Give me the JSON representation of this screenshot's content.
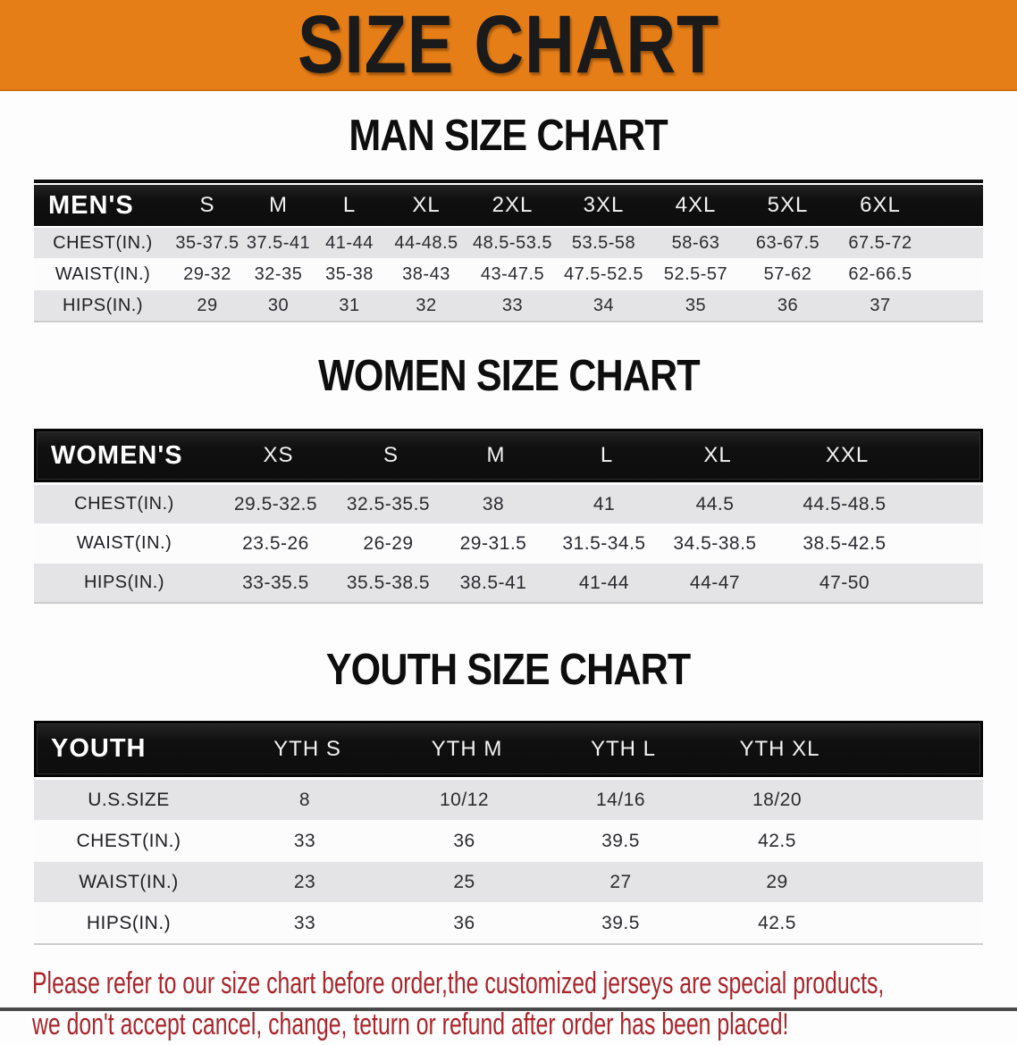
{
  "banner": {
    "title": "SIZE CHART"
  },
  "sections": [
    {
      "heading": "MAN SIZE CHART",
      "table": {
        "header_label": "MEN'S",
        "columns": [
          "S",
          "M",
          "L",
          "XL",
          "2XL",
          "3XL",
          "4XL",
          "5XL",
          "6XL"
        ],
        "rows": [
          {
            "label": "CHEST(IN.)",
            "values": [
              "35-37.5",
              "37.5-41",
              "41-44",
              "44-48.5",
              "48.5-53.5",
              "53.5-58",
              "58-63",
              "63-67.5",
              "67.5-72"
            ]
          },
          {
            "label": "WAIST(IN.)",
            "values": [
              "29-32",
              "32-35",
              "35-38",
              "38-43",
              "43-47.5",
              "47.5-52.5",
              "52.5-57",
              "57-62",
              "62-66.5"
            ]
          },
          {
            "label": "HIPS(IN.)",
            "values": [
              "29",
              "30",
              "31",
              "32",
              "33",
              "34",
              "35",
              "36",
              "37"
            ]
          }
        ]
      }
    },
    {
      "heading": "WOMEN SIZE CHART",
      "table": {
        "header_label": "WOMEN'S",
        "columns": [
          "XS",
          "S",
          "M",
          "L",
          "XL",
          "XXL"
        ],
        "rows": [
          {
            "label": "CHEST(IN.)",
            "values": [
              "29.5-32.5",
              "32.5-35.5",
              "38",
              "41",
              "44.5",
              "44.5-48.5"
            ]
          },
          {
            "label": "WAIST(IN.)",
            "values": [
              "23.5-26",
              "26-29",
              "29-31.5",
              "31.5-34.5",
              "34.5-38.5",
              "38.5-42.5"
            ]
          },
          {
            "label": "HIPS(IN.)",
            "values": [
              "33-35.5",
              "35.5-38.5",
              "38.5-41",
              "41-44",
              "44-47",
              "47-50"
            ]
          }
        ]
      }
    },
    {
      "heading": "YOUTH SIZE CHART",
      "table": {
        "header_label": "YOUTH",
        "columns": [
          "YTH S",
          "YTH M",
          "YTH L",
          "YTH XL"
        ],
        "rows": [
          {
            "label": "U.S.SIZE",
            "values": [
              "8",
              "10/12",
              "14/16",
              "18/20"
            ]
          },
          {
            "label": "CHEST(IN.)",
            "values": [
              "33",
              "36",
              "39.5",
              "42.5"
            ]
          },
          {
            "label": "WAIST(IN.)",
            "values": [
              "23",
              "25",
              "27",
              "29"
            ]
          },
          {
            "label": "HIPS(IN.)",
            "values": [
              "33",
              "36",
              "39.5",
              "42.5"
            ]
          }
        ]
      }
    }
  ],
  "disclaimer": {
    "lines": [
      "Please refer to our size chart before order,the customized jerseys are special products,",
      "we don't accept cancel, change, teturn or refund after order has been placed!"
    ]
  },
  "colors": {
    "banner_orange": "#E67E17",
    "header_black": "#121212",
    "row_gray": "#E4E4E6",
    "row_white": "#FCFCFC",
    "disclaimer_red": "#A8262C"
  }
}
